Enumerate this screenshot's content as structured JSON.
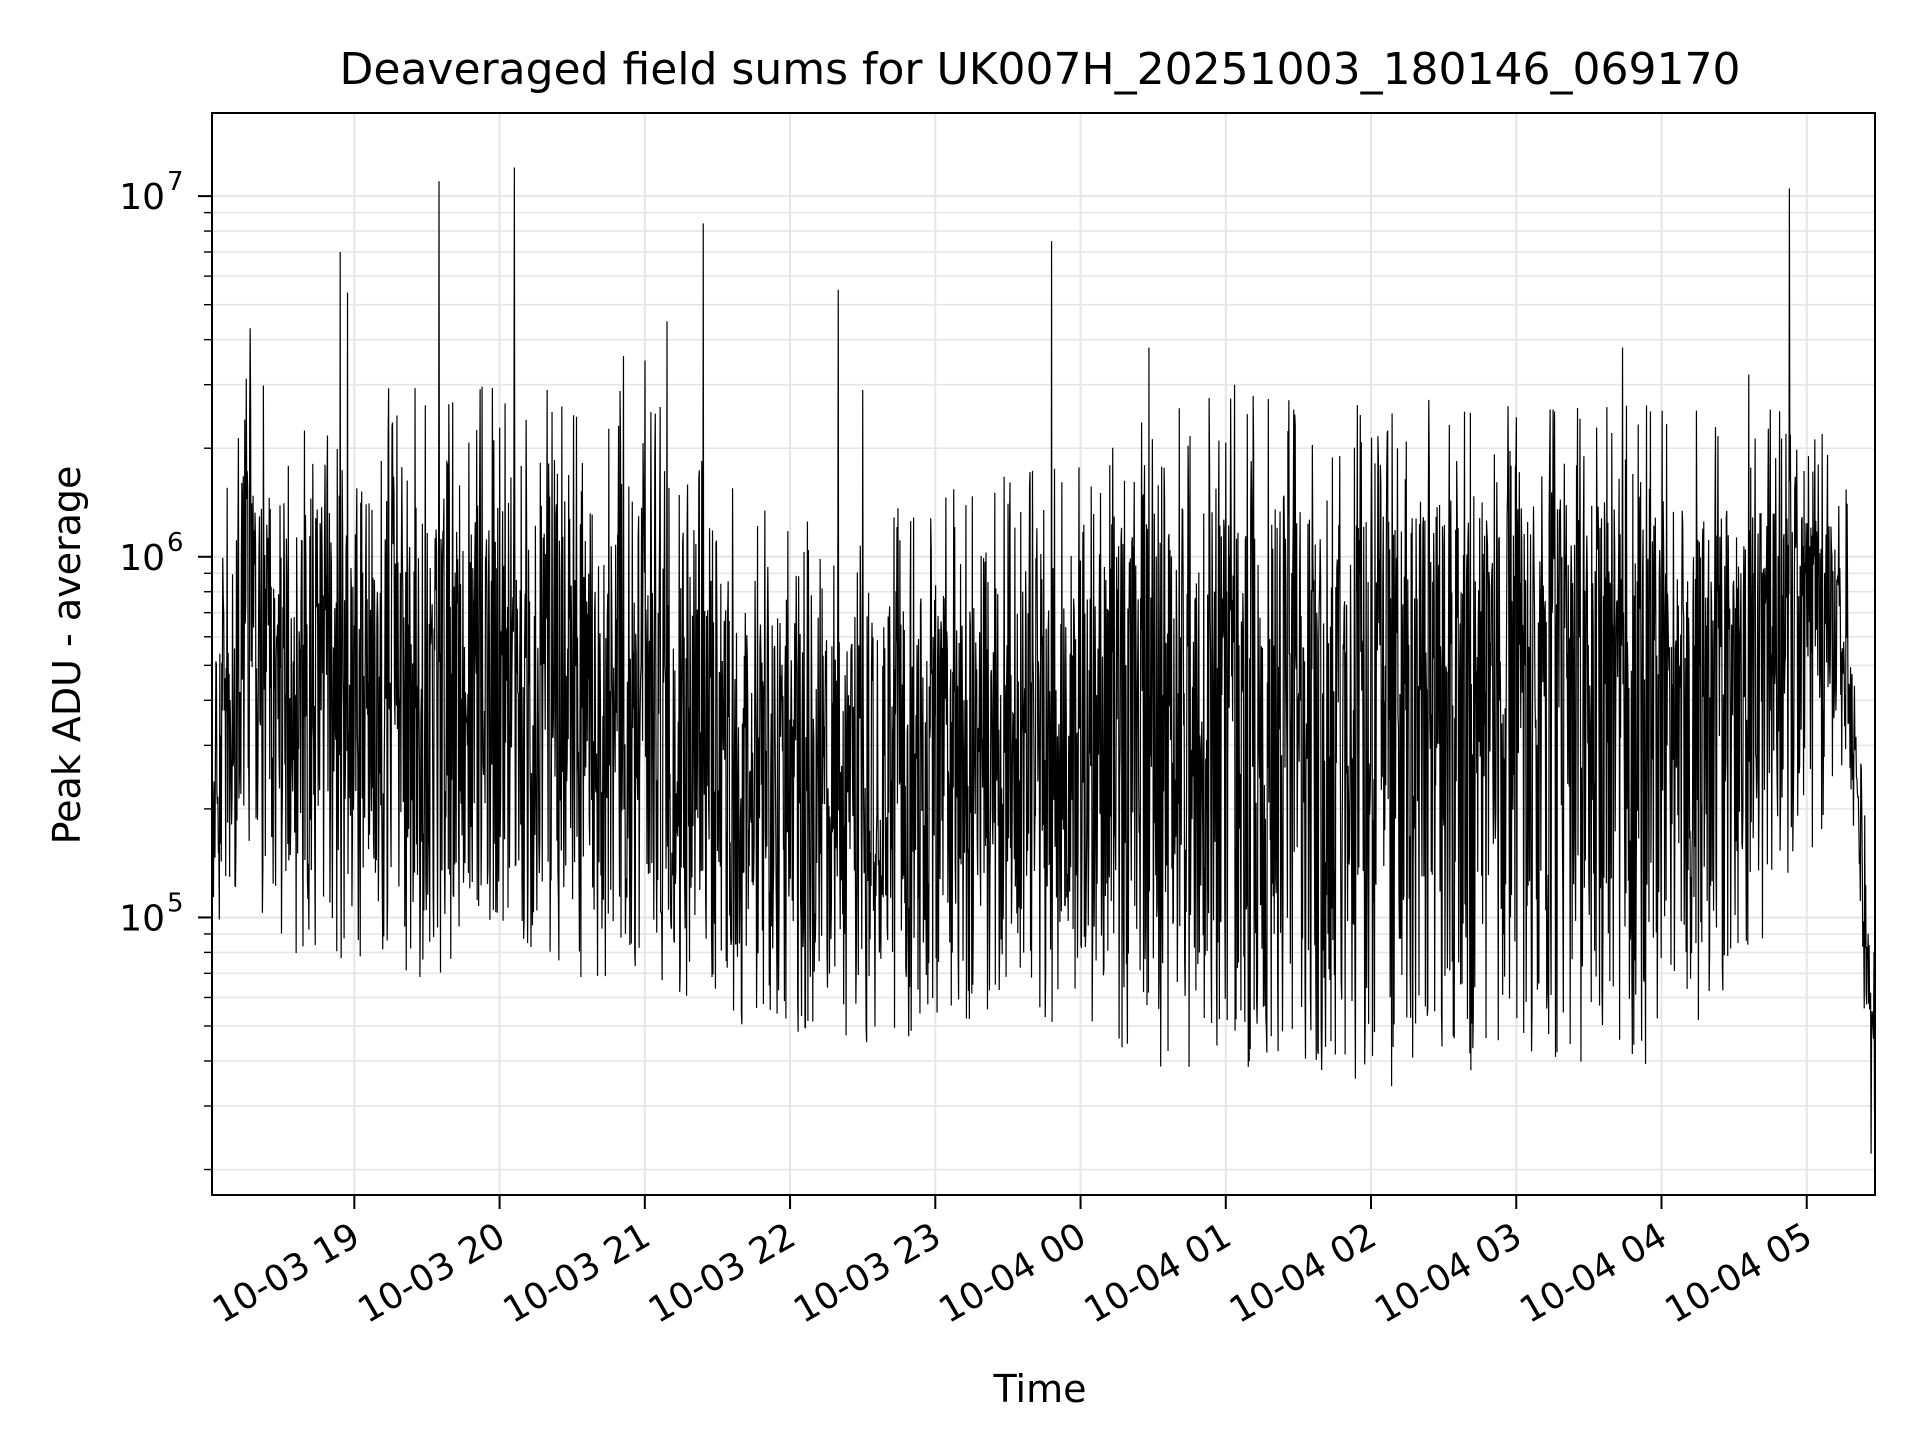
{
  "chart_data": {
    "type": "line",
    "title": "Deaveraged field sums for UK007H_20251003_180146_069170",
    "xlabel": "Time",
    "ylabel": "Peak ADU - average",
    "yscale": "log",
    "grid": true,
    "line_color": "#000000",
    "grid_color": "#e6e6e6",
    "x_time_unit": "hours",
    "xlim": [
      18.02,
      29.47
    ],
    "ylim": [
      17000,
      17000000
    ],
    "x_ticks": [
      {
        "value": 19,
        "label": "10-03 19"
      },
      {
        "value": 20,
        "label": "10-03 20"
      },
      {
        "value": 21,
        "label": "10-03 21"
      },
      {
        "value": 22,
        "label": "10-03 22"
      },
      {
        "value": 23,
        "label": "10-03 23"
      },
      {
        "value": 24,
        "label": "10-04 00"
      },
      {
        "value": 25,
        "label": "10-04 01"
      },
      {
        "value": 26,
        "label": "10-04 02"
      },
      {
        "value": 27,
        "label": "10-04 03"
      },
      {
        "value": 28,
        "label": "10-04 04"
      },
      {
        "value": 29,
        "label": "10-04 05"
      }
    ],
    "y_major_ticks": [
      {
        "value": 100000,
        "base": "10",
        "exp": "5"
      },
      {
        "value": 1000000,
        "base": "10",
        "exp": "6"
      },
      {
        "value": 10000000,
        "base": "10",
        "exp": "7"
      }
    ],
    "envelope": [
      {
        "t": 18.02,
        "low": 110000,
        "typ": 180000,
        "high": 500000
      },
      {
        "t": 18.25,
        "low": 200000,
        "typ": 700000,
        "high": 2000000
      },
      {
        "t": 18.5,
        "low": 120000,
        "typ": 450000,
        "high": 1400000
      },
      {
        "t": 19.0,
        "low": 110000,
        "typ": 400000,
        "high": 1500000
      },
      {
        "t": 19.5,
        "low": 100000,
        "typ": 400000,
        "high": 1600000
      },
      {
        "t": 20.0,
        "low": 130000,
        "typ": 450000,
        "high": 1600000
      },
      {
        "t": 20.5,
        "low": 100000,
        "typ": 380000,
        "high": 1500000
      },
      {
        "t": 21.0,
        "low": 110000,
        "typ": 400000,
        "high": 1700000
      },
      {
        "t": 21.5,
        "low": 80000,
        "typ": 260000,
        "high": 900000
      },
      {
        "t": 22.0,
        "low": 70000,
        "typ": 220000,
        "high": 700000
      },
      {
        "t": 22.5,
        "low": 65000,
        "typ": 200000,
        "high": 700000
      },
      {
        "t": 23.0,
        "low": 75000,
        "typ": 250000,
        "high": 800000
      },
      {
        "t": 23.5,
        "low": 80000,
        "typ": 300000,
        "high": 900000
      },
      {
        "t": 24.0,
        "low": 75000,
        "typ": 300000,
        "high": 1000000
      },
      {
        "t": 24.5,
        "low": 60000,
        "typ": 350000,
        "high": 1300000
      },
      {
        "t": 25.0,
        "low": 50000,
        "typ": 380000,
        "high": 1500000
      },
      {
        "t": 25.5,
        "low": 55000,
        "typ": 380000,
        "high": 1450000
      },
      {
        "t": 26.0,
        "low": 50000,
        "typ": 350000,
        "high": 1400000
      },
      {
        "t": 26.5,
        "low": 55000,
        "typ": 380000,
        "high": 1450000
      },
      {
        "t": 27.0,
        "low": 60000,
        "typ": 400000,
        "high": 1400000
      },
      {
        "t": 27.5,
        "low": 60000,
        "typ": 380000,
        "high": 1400000
      },
      {
        "t": 28.0,
        "low": 60000,
        "typ": 400000,
        "high": 1400000
      },
      {
        "t": 28.5,
        "low": 100000,
        "typ": 600000,
        "high": 1400000
      },
      {
        "t": 29.0,
        "low": 200000,
        "typ": 800000,
        "high": 1300000
      },
      {
        "t": 29.25,
        "low": 400000,
        "typ": 800000,
        "high": 1200000
      },
      {
        "t": 29.33,
        "low": 200000,
        "typ": 300000,
        "high": 400000
      },
      {
        "t": 29.4,
        "low": 60000,
        "typ": 100000,
        "high": 150000
      },
      {
        "t": 29.47,
        "low": 20000,
        "typ": 30000,
        "high": 40000
      }
    ],
    "notable_peaks": [
      {
        "t": 18.28,
        "value": 4300000
      },
      {
        "t": 18.9,
        "value": 7000000
      },
      {
        "t": 18.95,
        "value": 5400000
      },
      {
        "t": 19.58,
        "value": 11000000
      },
      {
        "t": 20.1,
        "value": 12000000
      },
      {
        "t": 20.85,
        "value": 3600000
      },
      {
        "t": 21.0,
        "value": 3500000
      },
      {
        "t": 21.15,
        "value": 4500000
      },
      {
        "t": 21.4,
        "value": 8400000
      },
      {
        "t": 22.33,
        "value": 5500000
      },
      {
        "t": 22.5,
        "value": 2900000
      },
      {
        "t": 23.8,
        "value": 7500000
      },
      {
        "t": 24.47,
        "value": 3800000
      },
      {
        "t": 25.06,
        "value": 3000000
      },
      {
        "t": 27.73,
        "value": 3800000
      },
      {
        "t": 28.6,
        "value": 3200000
      },
      {
        "t": 28.88,
        "value": 10500000
      }
    ]
  }
}
